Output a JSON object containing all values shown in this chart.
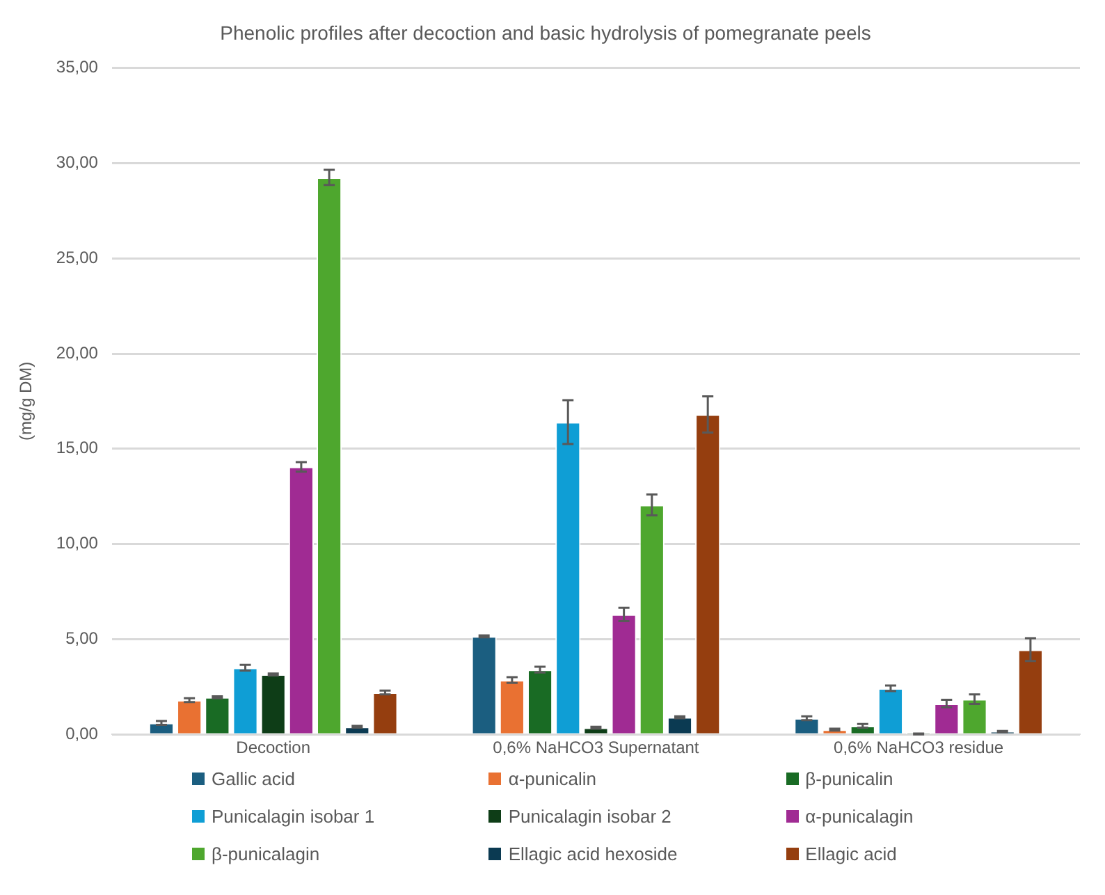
{
  "chart_data": {
    "type": "bar",
    "title": "Phenolic profiles after decoction and basic hydrolysis of pomegranate peels",
    "ylabel": "(mg/g DM)",
    "categories": [
      "Decoction",
      "0,6% NaHCO3 Supernatant",
      "0,6% NaHCO3 residue"
    ],
    "ylim": [
      0,
      35
    ],
    "yticks": [
      {
        "value": 0,
        "label": "0,00"
      },
      {
        "value": 5,
        "label": "5,00"
      },
      {
        "value": 10,
        "label": "10,00"
      },
      {
        "value": 15,
        "label": "15,00"
      },
      {
        "value": 20,
        "label": "20,00"
      },
      {
        "value": 25,
        "label": "25,00"
      },
      {
        "value": 30,
        "label": "30,00"
      },
      {
        "value": 35,
        "label": "35,00"
      }
    ],
    "grid": "y",
    "legend": "bottom",
    "series": [
      {
        "name": "Gallic acid",
        "color": "#1b5e80",
        "values": [
          0.6,
          5.15,
          0.85
        ],
        "errors": [
          0.1,
          0.05,
          0.1
        ]
      },
      {
        "name": "α-punicalin",
        "color": "#e97132",
        "values": [
          1.8,
          2.85,
          0.25
        ],
        "errors": [
          0.1,
          0.15,
          0.05
        ]
      },
      {
        "name": "β-punicalin",
        "color": "#196b24",
        "values": [
          1.95,
          3.4,
          0.45
        ],
        "errors": [
          0.05,
          0.15,
          0.1
        ]
      },
      {
        "name": "Punicalagin isobar 1",
        "color": "#0f9ed5",
        "values": [
          3.5,
          16.4,
          2.42
        ],
        "errors": [
          0.15,
          1.15,
          0.15
        ]
      },
      {
        "name": "Punicalagin isobar 2",
        "color": "#0e3d17",
        "values": [
          3.15,
          0.35,
          0.02
        ],
        "errors": [
          0.05,
          0.05,
          0.02
        ]
      },
      {
        "name": "α-punicalagin",
        "color": "#a02b93",
        "values": [
          14.05,
          6.3,
          1.62
        ],
        "errors": [
          0.25,
          0.35,
          0.2
        ]
      },
      {
        "name": "β-punicalagin",
        "color": "#4ea72e",
        "values": [
          29.25,
          12.05,
          1.85
        ],
        "errors": [
          0.4,
          0.55,
          0.25
        ]
      },
      {
        "name": "Ellagic acid hexoside",
        "color": "#0b3a52",
        "values": [
          0.4,
          0.9,
          0.15
        ],
        "errors": [
          0.05,
          0.05,
          0.03
        ]
      },
      {
        "name": "Ellagic acid",
        "color": "#953e0f",
        "values": [
          2.2,
          16.8,
          4.45
        ],
        "errors": [
          0.1,
          0.95,
          0.6
        ]
      }
    ]
  }
}
